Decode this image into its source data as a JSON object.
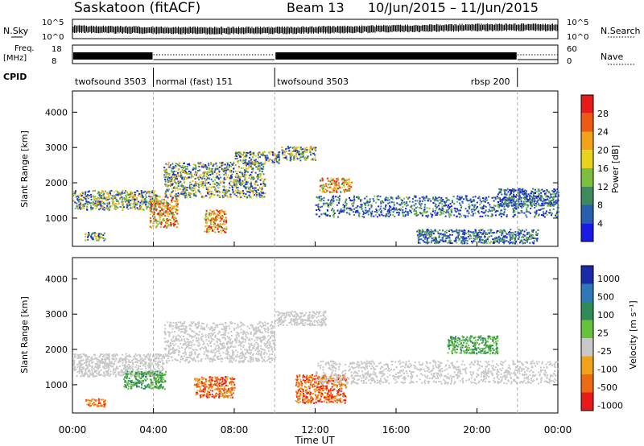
{
  "header": {
    "station": "Saskatoon (fitACF)",
    "beam": "Beam 13",
    "date_range": "10/Jun/2015 – 11/Jun/2015"
  },
  "info_panels": {
    "nsky_label": "N.Sky",
    "nsky_ticks": [
      "10^5",
      "10^0"
    ],
    "nsearch_label": "N.Search",
    "nsearch_ticks": [
      "10^5",
      "10^0"
    ],
    "freq_label": [
      "Freq.",
      "[MHz]"
    ],
    "freq_ticks": [
      "18",
      "8"
    ],
    "nave_label": "Nave",
    "nave_ticks": [
      "60",
      "0"
    ],
    "cpid_label": "CPID",
    "cpid_segments": [
      {
        "label": "twofsound 3503",
        "start_h": 0,
        "end_h": 4
      },
      {
        "label": "normal (fast) 151",
        "start_h": 4,
        "end_h": 10
      },
      {
        "label": "twofsound 3503",
        "start_h": 10,
        "end_h": 22
      },
      {
        "label": "rbsp 200",
        "start_h": 22,
        "end_h": 24
      }
    ]
  },
  "chart_data": [
    {
      "type": "heatmap",
      "panel": "power",
      "ylabel": "Slant Range [km]",
      "yticks": [
        1000,
        2000,
        3000,
        4000
      ],
      "ylim": [
        200,
        4600
      ],
      "xlim_hours": [
        0,
        24
      ],
      "colorbar": {
        "label": "Power [dB]",
        "ticks": [
          "4",
          "8",
          "12",
          "16",
          "20",
          "24",
          "28"
        ],
        "colors": [
          "#1a1ae6",
          "#2a5fb0",
          "#3f8a5c",
          "#7cbf3e",
          "#e8d21e",
          "#f2a11a",
          "#ee5a12",
          "#e81a1a"
        ]
      },
      "echo_regions": [
        {
          "from_h": 0.0,
          "to_h": 4.2,
          "range_km": [
            1250,
            1800
          ],
          "level": "medium"
        },
        {
          "from_h": 0.6,
          "to_h": 1.6,
          "range_km": [
            380,
            620
          ],
          "level": "medium"
        },
        {
          "from_h": 3.8,
          "to_h": 5.2,
          "range_km": [
            750,
            1650
          ],
          "level": "strong"
        },
        {
          "from_h": 4.5,
          "to_h": 9.5,
          "range_km": [
            1600,
            2600
          ],
          "level": "medium"
        },
        {
          "from_h": 6.5,
          "to_h": 7.6,
          "range_km": [
            600,
            1250
          ],
          "level": "strong"
        },
        {
          "from_h": 8.0,
          "to_h": 10.2,
          "range_km": [
            2550,
            2900
          ],
          "level": "medium"
        },
        {
          "from_h": 10.3,
          "to_h": 12.0,
          "range_km": [
            2650,
            3050
          ],
          "level": "medium"
        },
        {
          "from_h": 12.2,
          "to_h": 13.8,
          "range_km": [
            1750,
            2150
          ],
          "level": "strong"
        },
        {
          "from_h": 12.0,
          "to_h": 24.0,
          "range_km": [
            1050,
            1650
          ],
          "level": "weak"
        },
        {
          "from_h": 17.0,
          "to_h": 23.0,
          "range_km": [
            300,
            700
          ],
          "level": "weak"
        },
        {
          "from_h": 21.0,
          "to_h": 24.0,
          "range_km": [
            1350,
            1850
          ],
          "level": "weak"
        }
      ]
    },
    {
      "type": "heatmap",
      "panel": "velocity",
      "ylabel": "Slant Range [km]",
      "yticks": [
        1000,
        2000,
        3000,
        4000
      ],
      "ylim": [
        200,
        4600
      ],
      "xlim_hours": [
        0,
        24
      ],
      "xlabel": "Time UT",
      "xticks": [
        "00:00",
        "04:00",
        "08:00",
        "12:00",
        "16:00",
        "20:00",
        "00:00"
      ],
      "colorbar": {
        "label": "Velocity [m s⁻¹]",
        "ticks": [
          "1000",
          "500",
          "100",
          "25",
          "-25",
          "-100",
          "-500",
          "-1000"
        ],
        "colors": [
          "#1a2aa8",
          "#2e78b8",
          "#2f8a5a",
          "#66c23a",
          "#c8c8c8",
          "#f0a21a",
          "#ee6a12",
          "#e81a1a"
        ]
      },
      "echo_regions": [
        {
          "from_h": 0.0,
          "to_h": 4.5,
          "range_km": [
            1250,
            1900
          ],
          "level": "ground"
        },
        {
          "from_h": 2.5,
          "to_h": 4.6,
          "range_km": [
            900,
            1400
          ],
          "level": "positive"
        },
        {
          "from_h": 0.6,
          "to_h": 1.6,
          "range_km": [
            380,
            620
          ],
          "level": "negative"
        },
        {
          "from_h": 4.5,
          "to_h": 10.0,
          "range_km": [
            1650,
            2800
          ],
          "level": "ground"
        },
        {
          "from_h": 6.0,
          "to_h": 8.0,
          "range_km": [
            650,
            1250
          ],
          "level": "negative"
        },
        {
          "from_h": 10.0,
          "to_h": 12.5,
          "range_km": [
            2700,
            3100
          ],
          "level": "ground"
        },
        {
          "from_h": 11.0,
          "to_h": 13.5,
          "range_km": [
            500,
            1300
          ],
          "level": "negative"
        },
        {
          "from_h": 12.0,
          "to_h": 24.0,
          "range_km": [
            1050,
            1700
          ],
          "level": "ground"
        },
        {
          "from_h": 18.5,
          "to_h": 21.0,
          "range_km": [
            1900,
            2400
          ],
          "level": "positive"
        }
      ]
    }
  ]
}
